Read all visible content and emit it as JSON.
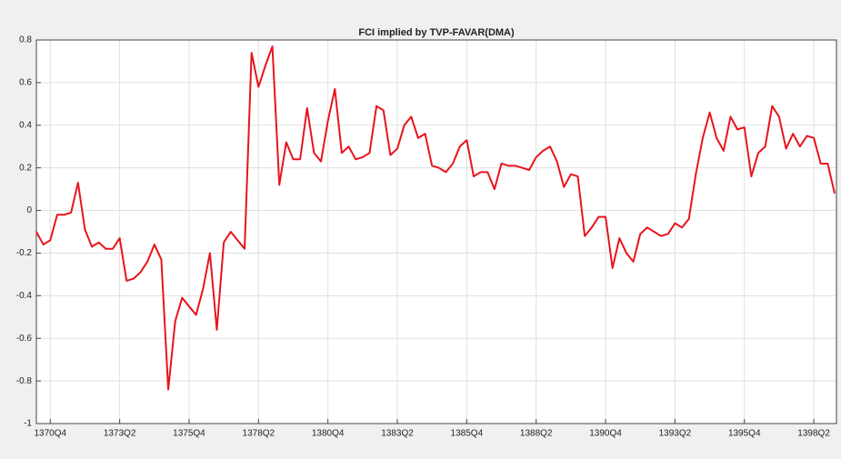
{
  "chart_data": {
    "type": "line",
    "title": "FCI implied by TVP-FAVAR(DMA)",
    "categories": [
      null,
      null,
      "1370Q4",
      null,
      null,
      null,
      null,
      null,
      null,
      null,
      null,
      null,
      "1373Q2",
      null,
      null,
      null,
      null,
      null,
      null,
      null,
      null,
      null,
      "1375Q4",
      null,
      null,
      null,
      null,
      null,
      null,
      null,
      null,
      null,
      "1378Q2",
      null,
      null,
      null,
      null,
      null,
      null,
      null,
      null,
      null,
      "1380Q4",
      null,
      null,
      null,
      null,
      null,
      null,
      null,
      null,
      null,
      "1383Q2",
      null,
      null,
      null,
      null,
      null,
      null,
      null,
      null,
      null,
      "1385Q4",
      null,
      null,
      null,
      null,
      null,
      null,
      null,
      null,
      null,
      "1388Q2",
      null,
      null,
      null,
      null,
      null,
      null,
      null,
      null,
      null,
      "1390Q4",
      null,
      null,
      null,
      null,
      null,
      null,
      null,
      null,
      null,
      "1393Q2",
      null,
      null,
      null,
      null,
      null,
      null,
      null,
      null,
      null,
      "1395Q4",
      null,
      null,
      null,
      null,
      null,
      null,
      null,
      null,
      null,
      "1398Q2",
      null,
      null,
      null
    ],
    "values": [
      -0.1,
      -0.16,
      -0.14,
      -0.02,
      -0.02,
      -0.01,
      0.13,
      -0.09,
      -0.17,
      -0.15,
      -0.18,
      -0.18,
      -0.13,
      -0.33,
      -0.32,
      -0.29,
      -0.24,
      -0.16,
      -0.23,
      -0.84,
      -0.52,
      -0.41,
      -0.45,
      -0.49,
      -0.37,
      -0.2,
      -0.56,
      -0.15,
      -0.1,
      -0.14,
      -0.18,
      0.74,
      0.58,
      0.68,
      0.77,
      0.12,
      0.32,
      0.24,
      0.24,
      0.48,
      0.27,
      0.23,
      0.42,
      0.57,
      0.27,
      0.3,
      0.24,
      0.25,
      0.27,
      0.49,
      0.47,
      0.26,
      0.29,
      0.4,
      0.44,
      0.34,
      0.36,
      0.21,
      0.2,
      0.18,
      0.22,
      0.3,
      0.33,
      0.16,
      0.18,
      0.18,
      0.1,
      0.22,
      0.21,
      0.21,
      0.2,
      0.19,
      0.25,
      0.28,
      0.3,
      0.23,
      0.11,
      0.17,
      0.16,
      -0.12,
      -0.08,
      -0.03,
      -0.03,
      -0.27,
      -0.13,
      -0.2,
      -0.24,
      -0.11,
      -0.08,
      -0.1,
      -0.12,
      -0.11,
      -0.06,
      -0.08,
      -0.04,
      0.17,
      0.34,
      0.46,
      0.34,
      0.28,
      0.44,
      0.38,
      0.39,
      0.16,
      0.27,
      0.3,
      0.49,
      0.44,
      0.29,
      0.36,
      0.3,
      0.35,
      0.34,
      0.22,
      0.22,
      0.08
    ],
    "color": "#e8141c",
    "ylim": [
      -1,
      0.8
    ],
    "yticks": [
      -1,
      -0.8,
      -0.6,
      -0.4,
      -0.2,
      0,
      0.2,
      0.4,
      0.6,
      0.8
    ],
    "grid": true
  }
}
